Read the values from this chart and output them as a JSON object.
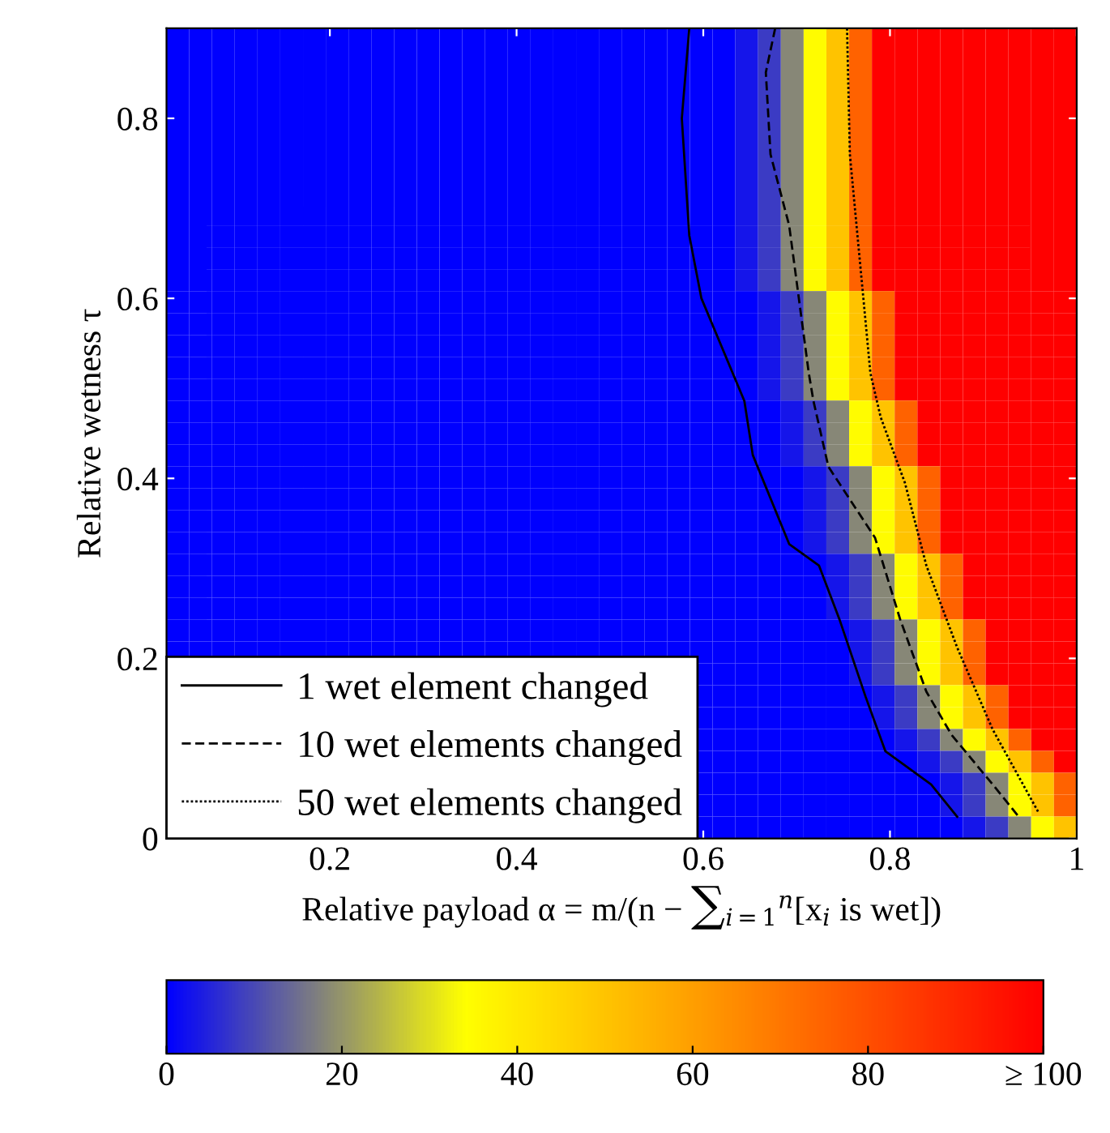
{
  "chart_data": [
    {
      "type": "heatmap",
      "xlabel": "Relative payload α = m/(n − ∑$_{i=1}$$^{n}$[x$_{i}$ is wet])",
      "ylabel": "Relative wetness τ",
      "xlim": [
        0.025,
        1.0
      ],
      "ylim": [
        0,
        0.9
      ],
      "xticks": [
        0.2,
        0.4,
        0.6,
        0.8,
        1
      ],
      "yticks": [
        0,
        0.2,
        0.4,
        0.6,
        0.8
      ],
      "clim": [
        0,
        100
      ],
      "cticks": [
        0,
        20,
        40,
        60,
        80,
        {
          "value": 100,
          "label": "≥ 100"
        }
      ],
      "legend": "bottom left",
      "cells": [
        [
          0,
          0,
          0,
          0,
          0,
          0,
          0,
          0,
          0,
          0,
          0,
          0,
          0,
          0,
          0,
          0,
          0,
          0,
          0,
          0,
          0,
          0,
          0,
          0,
          0,
          3,
          8,
          18,
          35,
          50,
          75,
          100,
          100,
          100,
          100,
          100,
          100,
          100,
          100,
          100
        ],
        [
          0,
          0,
          0,
          0,
          0,
          0,
          0,
          0,
          0,
          0,
          0,
          0,
          0,
          0,
          0,
          0,
          0,
          0,
          0,
          0,
          0,
          0,
          0,
          0,
          0,
          3,
          8,
          18,
          35,
          50,
          75,
          100,
          100,
          100,
          100,
          100,
          100,
          100,
          100,
          100
        ],
        [
          0,
          0,
          0,
          0,
          0,
          0,
          0,
          0,
          0,
          0,
          0,
          0,
          0,
          0,
          0,
          0,
          0,
          0,
          0,
          0,
          0,
          0,
          0,
          0,
          0,
          3,
          8,
          18,
          35,
          50,
          75,
          100,
          100,
          100,
          100,
          100,
          100,
          100,
          100,
          100
        ],
        [
          0,
          0,
          0,
          0,
          0,
          0,
          0,
          0,
          0,
          0,
          0,
          0,
          0,
          0,
          0,
          0,
          0,
          0,
          0,
          0,
          0,
          0,
          0,
          0,
          0,
          3,
          8,
          18,
          35,
          50,
          75,
          100,
          100,
          100,
          100,
          100,
          100,
          100,
          100,
          100
        ],
        [
          0,
          0,
          0,
          0,
          0,
          0,
          0,
          0,
          0,
          0,
          0,
          0,
          0,
          0,
          0,
          0,
          0,
          0,
          0,
          0,
          0,
          0,
          0,
          0,
          0,
          3,
          8,
          18,
          35,
          50,
          75,
          100,
          100,
          100,
          100,
          100,
          100,
          100,
          100,
          100
        ],
        [
          0,
          0,
          0,
          0,
          0,
          0,
          0,
          0,
          0,
          0,
          0,
          0,
          0,
          0,
          0,
          0,
          0,
          0,
          0,
          0,
          0,
          0,
          0,
          0,
          0,
          3,
          8,
          18,
          35,
          50,
          75,
          100,
          100,
          100,
          100,
          100,
          100,
          100,
          100,
          100
        ],
        [
          0,
          0,
          0,
          0,
          0,
          0,
          0,
          0,
          0,
          0,
          0,
          0,
          0,
          0,
          0,
          0,
          0,
          0,
          0,
          0,
          0,
          0,
          0,
          0,
          0,
          3,
          8,
          18,
          35,
          50,
          75,
          100,
          100,
          100,
          100,
          100,
          100,
          100,
          100,
          100
        ],
        [
          0,
          0,
          0,
          0,
          0,
          0,
          0,
          0,
          0,
          0,
          0,
          0,
          0,
          0,
          0,
          0,
          0,
          0,
          0,
          0,
          0,
          0,
          0,
          0,
          0,
          3,
          8,
          18,
          35,
          50,
          75,
          100,
          100,
          100,
          100,
          100,
          100,
          100,
          100,
          100
        ],
        [
          0,
          0,
          0,
          0,
          0,
          0,
          0,
          0,
          0,
          0,
          0,
          0,
          0,
          0,
          0,
          0,
          0,
          0,
          0,
          0,
          0,
          0,
          0,
          0,
          0,
          3,
          8,
          18,
          35,
          50,
          75,
          100,
          100,
          100,
          100,
          100,
          100,
          100,
          100,
          100
        ],
        [
          0,
          0,
          0,
          0,
          0,
          0,
          0,
          0,
          0,
          0,
          0,
          0,
          0,
          0,
          0,
          0,
          0,
          0,
          0,
          0,
          0,
          0,
          0,
          0,
          0,
          3,
          8,
          18,
          35,
          50,
          75,
          100,
          100,
          100,
          100,
          100,
          100,
          100,
          100,
          100
        ],
        [
          0,
          0,
          0,
          0,
          0,
          0,
          0,
          0,
          0,
          0,
          0,
          0,
          0,
          0,
          0,
          0,
          0,
          0,
          0,
          0,
          0,
          0,
          0,
          0,
          0,
          3,
          8,
          18,
          35,
          50,
          75,
          100,
          100,
          100,
          100,
          100,
          100,
          100,
          100,
          100
        ],
        [
          0,
          0,
          0,
          0,
          0,
          0,
          0,
          0,
          0,
          0,
          0,
          0,
          0,
          0,
          0,
          0,
          0,
          0,
          0,
          0,
          0,
          0,
          0,
          0,
          0,
          3,
          8,
          18,
          35,
          50,
          75,
          100,
          100,
          100,
          100,
          100,
          100,
          100,
          100,
          100
        ],
        [
          0,
          0,
          0,
          0,
          0,
          0,
          0,
          0,
          0,
          0,
          0,
          0,
          0,
          0,
          0,
          0,
          0,
          0,
          0,
          0,
          0,
          0,
          0,
          0,
          0,
          0,
          3,
          8,
          18,
          35,
          50,
          75,
          100,
          100,
          100,
          100,
          100,
          100,
          100,
          100
        ],
        [
          0,
          0,
          0,
          0,
          0,
          0,
          0,
          0,
          0,
          0,
          0,
          0,
          0,
          0,
          0,
          0,
          0,
          0,
          0,
          0,
          0,
          0,
          0,
          0,
          0,
          0,
          3,
          8,
          18,
          35,
          50,
          75,
          100,
          100,
          100,
          100,
          100,
          100,
          100,
          100
        ],
        [
          0,
          0,
          0,
          0,
          0,
          0,
          0,
          0,
          0,
          0,
          0,
          0,
          0,
          0,
          0,
          0,
          0,
          0,
          0,
          0,
          0,
          0,
          0,
          0,
          0,
          0,
          3,
          8,
          18,
          35,
          50,
          75,
          100,
          100,
          100,
          100,
          100,
          100,
          100,
          100
        ],
        [
          0,
          0,
          0,
          0,
          0,
          0,
          0,
          0,
          0,
          0,
          0,
          0,
          0,
          0,
          0,
          0,
          0,
          0,
          0,
          0,
          0,
          0,
          0,
          0,
          0,
          0,
          3,
          8,
          18,
          35,
          50,
          75,
          100,
          100,
          100,
          100,
          100,
          100,
          100,
          100
        ],
        [
          0,
          0,
          0,
          0,
          0,
          0,
          0,
          0,
          0,
          0,
          0,
          0,
          0,
          0,
          0,
          0,
          0,
          0,
          0,
          0,
          0,
          0,
          0,
          0,
          0,
          0,
          3,
          8,
          18,
          35,
          50,
          75,
          100,
          100,
          100,
          100,
          100,
          100,
          100,
          100
        ],
        [
          0,
          0,
          0,
          0,
          0,
          0,
          0,
          0,
          0,
          0,
          0,
          0,
          0,
          0,
          0,
          0,
          0,
          0,
          0,
          0,
          0,
          0,
          0,
          0,
          0,
          0,
          0,
          3,
          8,
          18,
          35,
          50,
          75,
          100,
          100,
          100,
          100,
          100,
          100,
          100
        ],
        [
          0,
          0,
          0,
          0,
          0,
          0,
          0,
          0,
          0,
          0,
          0,
          0,
          0,
          0,
          0,
          0,
          0,
          0,
          0,
          0,
          0,
          0,
          0,
          0,
          0,
          0,
          0,
          3,
          8,
          18,
          35,
          50,
          75,
          100,
          100,
          100,
          100,
          100,
          100,
          100
        ],
        [
          0,
          0,
          0,
          0,
          0,
          0,
          0,
          0,
          0,
          0,
          0,
          0,
          0,
          0,
          0,
          0,
          0,
          0,
          0,
          0,
          0,
          0,
          0,
          0,
          0,
          0,
          0,
          3,
          8,
          18,
          35,
          50,
          75,
          100,
          100,
          100,
          100,
          100,
          100,
          100
        ],
        [
          0,
          0,
          0,
          0,
          0,
          0,
          0,
          0,
          0,
          0,
          0,
          0,
          0,
          0,
          0,
          0,
          0,
          0,
          0,
          0,
          0,
          0,
          0,
          0,
          0,
          0,
          0,
          0,
          3,
          8,
          18,
          35,
          50,
          75,
          100,
          100,
          100,
          100,
          100,
          100
        ],
        [
          0,
          0,
          0,
          0,
          0,
          0,
          0,
          0,
          0,
          0,
          0,
          0,
          0,
          0,
          0,
          0,
          0,
          0,
          0,
          0,
          0,
          0,
          0,
          0,
          0,
          0,
          0,
          0,
          3,
          8,
          18,
          35,
          50,
          75,
          100,
          100,
          100,
          100,
          100,
          100
        ],
        [
          0,
          0,
          0,
          0,
          0,
          0,
          0,
          0,
          0,
          0,
          0,
          0,
          0,
          0,
          0,
          0,
          0,
          0,
          0,
          0,
          0,
          0,
          0,
          0,
          0,
          0,
          0,
          0,
          3,
          8,
          18,
          35,
          50,
          75,
          100,
          100,
          100,
          100,
          100,
          100
        ],
        [
          0,
          0,
          0,
          0,
          0,
          0,
          0,
          0,
          0,
          0,
          0,
          0,
          0,
          0,
          0,
          0,
          0,
          0,
          0,
          0,
          0,
          0,
          0,
          0,
          0,
          0,
          0,
          0,
          3,
          8,
          18,
          35,
          50,
          75,
          100,
          100,
          100,
          100,
          100,
          100
        ],
        [
          0,
          0,
          0,
          0,
          0,
          0,
          0,
          0,
          0,
          0,
          0,
          0,
          0,
          0,
          0,
          0,
          0,
          0,
          0,
          0,
          0,
          0,
          0,
          0,
          0,
          0,
          0,
          0,
          0,
          3,
          8,
          18,
          35,
          50,
          75,
          100,
          100,
          100,
          100,
          100
        ],
        [
          0,
          0,
          0,
          0,
          0,
          0,
          0,
          0,
          0,
          0,
          0,
          0,
          0,
          0,
          0,
          0,
          0,
          0,
          0,
          0,
          0,
          0,
          0,
          0,
          0,
          0,
          0,
          0,
          0,
          3,
          8,
          18,
          35,
          50,
          75,
          100,
          100,
          100,
          100,
          100
        ],
        [
          0,
          0,
          0,
          0,
          0,
          0,
          0,
          0,
          0,
          0,
          0,
          0,
          0,
          0,
          0,
          0,
          0,
          0,
          0,
          0,
          0,
          0,
          0,
          0,
          0,
          0,
          0,
          0,
          0,
          3,
          8,
          18,
          35,
          50,
          75,
          100,
          100,
          100,
          100,
          100
        ],
        [
          0,
          0,
          0,
          0,
          0,
          0,
          0,
          0,
          0,
          0,
          0,
          0,
          0,
          0,
          0,
          0,
          0,
          0,
          0,
          0,
          0,
          0,
          0,
          0,
          0,
          0,
          0,
          0,
          0,
          0,
          3,
          8,
          18,
          35,
          50,
          75,
          100,
          100,
          100,
          100
        ],
        [
          0,
          0,
          0,
          0,
          0,
          0,
          0,
          0,
          0,
          0,
          0,
          0,
          0,
          0,
          0,
          0,
          0,
          0,
          0,
          0,
          0,
          0,
          0,
          0,
          0,
          0,
          0,
          0,
          0,
          0,
          3,
          8,
          18,
          35,
          50,
          75,
          100,
          100,
          100,
          100
        ],
        [
          null,
          null,
          null,
          null,
          null,
          null,
          null,
          null,
          null,
          null,
          null,
          null,
          null,
          null,
          null,
          null,
          null,
          null,
          null,
          null,
          null,
          null,
          null,
          0,
          0,
          0,
          0,
          0,
          0,
          0,
          3,
          8,
          18,
          35,
          50,
          75,
          100,
          100,
          100,
          100
        ],
        [
          null,
          null,
          null,
          null,
          null,
          null,
          null,
          null,
          null,
          null,
          null,
          null,
          null,
          null,
          null,
          null,
          null,
          null,
          null,
          null,
          null,
          null,
          null,
          0,
          0,
          0,
          0,
          0,
          0,
          0,
          0,
          3,
          8,
          18,
          35,
          50,
          75,
          100,
          100,
          100
        ],
        [
          null,
          null,
          null,
          null,
          null,
          null,
          null,
          null,
          null,
          null,
          null,
          null,
          null,
          null,
          null,
          null,
          null,
          null,
          null,
          null,
          null,
          null,
          null,
          0,
          0,
          0,
          0,
          0,
          0,
          0,
          0,
          3,
          8,
          18,
          35,
          50,
          75,
          100,
          100,
          100
        ],
        [
          null,
          null,
          null,
          null,
          null,
          null,
          null,
          null,
          null,
          null,
          null,
          null,
          null,
          null,
          null,
          null,
          null,
          null,
          null,
          null,
          null,
          null,
          null,
          0,
          0,
          0,
          0,
          0,
          0,
          0,
          0,
          0,
          3,
          8,
          18,
          35,
          50,
          75,
          100,
          100
        ],
        [
          null,
          null,
          null,
          null,
          null,
          null,
          null,
          null,
          null,
          null,
          null,
          null,
          null,
          null,
          null,
          null,
          null,
          null,
          null,
          null,
          null,
          null,
          null,
          0,
          0,
          0,
          0,
          0,
          0,
          0,
          0,
          0,
          0,
          3,
          8,
          18,
          35,
          50,
          75,
          100
        ],
        [
          null,
          null,
          null,
          null,
          null,
          null,
          null,
          null,
          null,
          null,
          null,
          null,
          null,
          null,
          null,
          null,
          null,
          null,
          null,
          null,
          null,
          null,
          null,
          0,
          0,
          0,
          0,
          0,
          0,
          0,
          0,
          0,
          0,
          0,
          3,
          8,
          18,
          35,
          50,
          75
        ],
        [
          null,
          null,
          null,
          null,
          null,
          null,
          null,
          null,
          null,
          null,
          null,
          null,
          null,
          null,
          null,
          null,
          null,
          null,
          null,
          null,
          null,
          null,
          null,
          0,
          0,
          0,
          0,
          0,
          0,
          0,
          0,
          0,
          0,
          0,
          3,
          8,
          18,
          35,
          50,
          75
        ],
        [
          null,
          null,
          null,
          null,
          null,
          null,
          null,
          null,
          null,
          null,
          null,
          null,
          null,
          null,
          null,
          null,
          null,
          null,
          null,
          null,
          null,
          null,
          null,
          0,
          0,
          0,
          0,
          0,
          0,
          0,
          0,
          0,
          0,
          0,
          0,
          3,
          8,
          18,
          35,
          50
        ]
      ],
      "series": [
        {
          "name": "1 wet element changed",
          "type": "line",
          "color": "#000000",
          "line_style": "solid",
          "x": [
            0.585,
            0.577,
            0.585,
            0.598,
            0.644,
            0.653,
            0.692,
            0.724,
            0.746,
            0.774,
            0.795,
            0.844,
            0.872
          ],
          "values": [
            0.9,
            0.8,
            0.67,
            0.6,
            0.486,
            0.426,
            0.327,
            0.303,
            0.243,
            0.157,
            0.097,
            0.06,
            0.024
          ]
        },
        {
          "name": "10 wet elements changed",
          "type": "line",
          "color": "#000000",
          "line_style": "dashed",
          "x": [
            0.677,
            0.667,
            0.672,
            0.692,
            0.713,
            0.718,
            0.734,
            0.784,
            0.811,
            0.839,
            0.866,
            0.91,
            0.938
          ],
          "values": [
            0.9,
            0.851,
            0.76,
            0.681,
            0.517,
            0.486,
            0.413,
            0.334,
            0.243,
            0.163,
            0.115,
            0.06,
            0.024
          ]
        },
        {
          "name": "50 wet elements changed",
          "type": "line",
          "color": "#000000",
          "line_style": "dotted",
          "x": [
            0.754,
            0.757,
            0.779,
            0.79,
            0.816,
            0.839,
            0.872,
            0.91,
            0.959
          ],
          "values": [
            0.9,
            0.76,
            0.517,
            0.468,
            0.395,
            0.303,
            0.212,
            0.121,
            0.029
          ]
        }
      ]
    }
  ]
}
